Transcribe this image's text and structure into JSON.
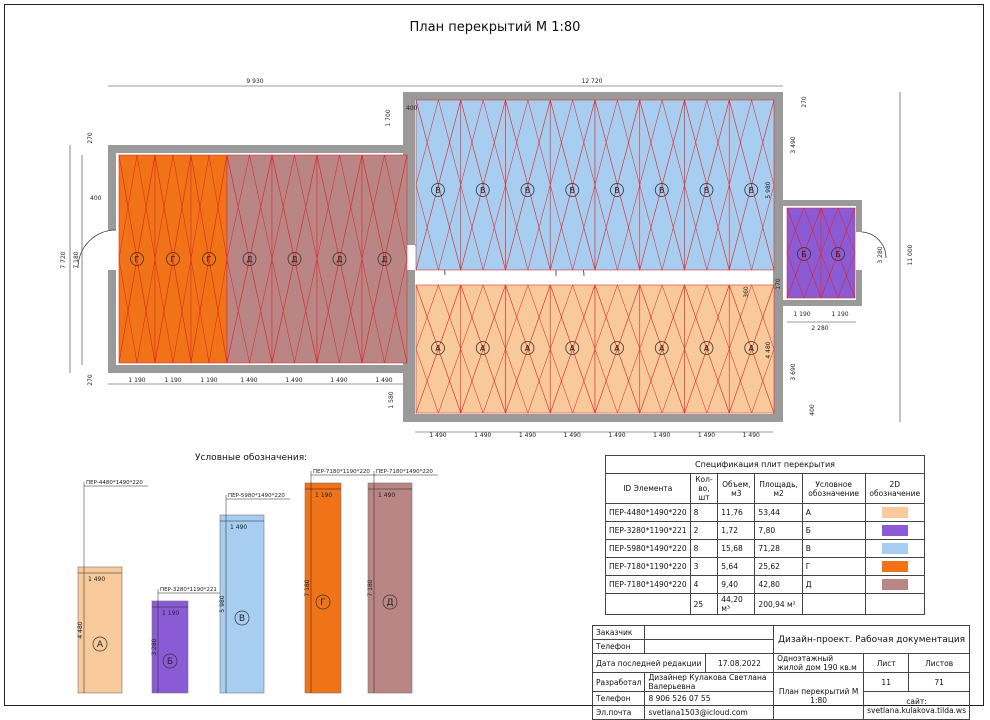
{
  "title": "План перекрытий М 1:80",
  "dims": {
    "top_left": "9 930",
    "top_right": "12 720",
    "left_height": "7 720",
    "left_inner": "7 180",
    "right_height": "11 000",
    "right_a": "3 690",
    "right_b": "5 980",
    "right_c": "4 480",
    "right_d": "3 490",
    "right_e": "3 280",
    "bay_width": "2 280",
    "small_1190": "1 190",
    "w1190": "1 190",
    "w1490": "1 490",
    "d270": "270",
    "d130": "130",
    "d400": "400",
    "d1700": "1 700",
    "d1580": "1 580",
    "d360": "360",
    "d170": "170"
  },
  "slab_letters": {
    "A": "А",
    "B": "Б",
    "V": "В",
    "G": "Г",
    "D": "Д"
  },
  "legend": {
    "title": "Условные обозначения:",
    "items": [
      {
        "tag": "ПЕР-4480*1490*220",
        "len": "4 480",
        "w": "1 490",
        "letter": "А",
        "color": "#f8c99a"
      },
      {
        "tag": "ПЕР-3280*1190*221",
        "len": "3 280",
        "w": "1 190",
        "letter": "Б",
        "color": "#8b5bd6"
      },
      {
        "tag": "ПЕР-5980*1490*220",
        "len": "5 980",
        "w": "1 490",
        "letter": "В",
        "color": "#a7cdf0"
      },
      {
        "tag": "ПЕР-7180*1190*220",
        "len": "7 180",
        "w": "1 190",
        "letter": "Г",
        "color": "#f07318"
      },
      {
        "tag": "ПЕР-7180*1490*220",
        "len": "7 180",
        "w": "1 490",
        "letter": "Д",
        "color": "#b98585"
      }
    ]
  },
  "spec": {
    "caption": "Спецификация плит перекрытия",
    "headers": [
      "ID Элемента",
      "Кол-во, шт",
      "Объем, м3",
      "Площадь, м2",
      "Условное обозначение",
      "2D обозначение"
    ],
    "rows": [
      {
        "id": "ПЕР-4480*1490*220",
        "qty": "8",
        "vol": "11,76",
        "area": "53,44",
        "mark": "А",
        "color": "#f8c99a"
      },
      {
        "id": "ПЕР-3280*1190*221",
        "qty": "2",
        "vol": "1,72",
        "area": "7,80",
        "mark": "Б",
        "color": "#8b5bd6"
      },
      {
        "id": "ПЕР-5980*1490*220",
        "qty": "8",
        "vol": "15,68",
        "area": "71,28",
        "mark": "В",
        "color": "#a7cdf0"
      },
      {
        "id": "ПЕР-7180*1190*220",
        "qty": "3",
        "vol": "5,64",
        "area": "25,62",
        "mark": "Г",
        "color": "#f07318"
      },
      {
        "id": "ПЕР-7180*1490*220",
        "qty": "4",
        "vol": "9,40",
        "area": "42,80",
        "mark": "Д",
        "color": "#b98585"
      }
    ],
    "total": {
      "qty": "25",
      "vol": "44,20 м³",
      "area": "200,94 м²"
    }
  },
  "stamp": {
    "customer_label": "Заказчик",
    "phone_label": "Телефон",
    "date_label": "Дата последней редакции",
    "date": "17.08.2022",
    "project": "Дизайн-проект. Рабочая документация",
    "object": "Одноэтажный жилой дом 190 кв.м",
    "sheet_label": "Лист",
    "sheets_label": "Листов",
    "sheet": "11",
    "sheets": "71",
    "dev_label": "Разработал",
    "dev_name": "Дизайнер Кулакова Светлана Валерьевна",
    "phone2_label": "Телефон",
    "phone": "8 906 526 07 55",
    "email_label": "Эл.почта",
    "email": "svetlana1503@icloud.com",
    "drawing": "План перекрытий М 1:80",
    "site_label": "сайт:",
    "site": "svetlana.kulakova.tilda.ws"
  }
}
